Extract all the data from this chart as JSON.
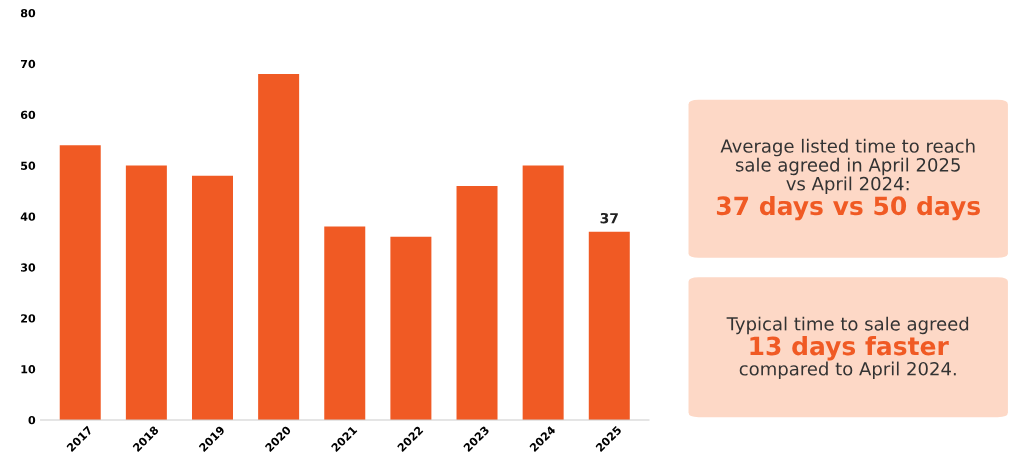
{
  "chart_data": {
    "type": "bar",
    "categories": [
      "2017",
      "2018",
      "2019",
      "2020",
      "2021",
      "2022",
      "2023",
      "2024",
      "2025"
    ],
    "values": [
      54,
      50,
      48,
      68,
      38,
      36,
      46,
      50,
      37
    ],
    "value_labels": [
      null,
      null,
      null,
      null,
      null,
      null,
      null,
      null,
      "37"
    ],
    "color": "#f05a24",
    "ylim": [
      0,
      80
    ],
    "yticks": [
      0,
      10,
      20,
      30,
      40,
      50,
      60,
      70,
      80
    ],
    "grid": false,
    "annotations": [
      "Average listed time to reach\nsale agreed in April 2025\nvs April 2024:\n37 days vs 50 days",
      "Typical time to sale agreed\n13 days faster\ncompared to April 2024."
    ]
  }
}
